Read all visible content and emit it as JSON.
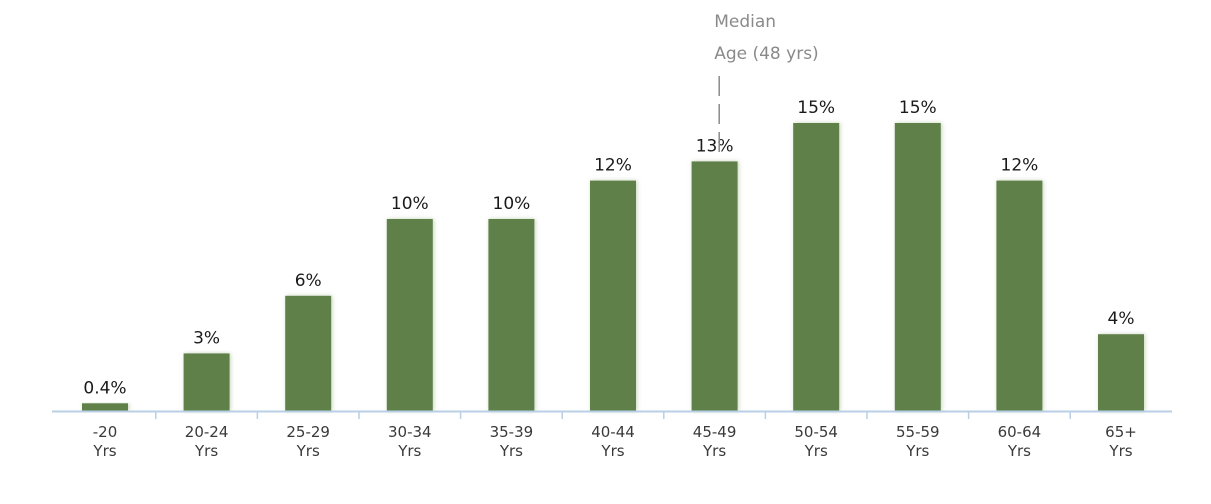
{
  "chart_data": {
    "type": "bar",
    "categories": [
      "-20",
      "20-24",
      "25-29",
      "30-34",
      "35-39",
      "40-44",
      "45-49",
      "50-54",
      "55-59",
      "60-64",
      "65+"
    ],
    "category_sublabels": [
      "Yrs",
      "Yrs",
      "Yrs",
      "Yrs",
      "Yrs",
      "Yrs",
      "Yrs",
      "Yrs",
      "Yrs",
      "Yrs",
      "Yrs"
    ],
    "values": [
      0.4,
      3,
      6,
      10,
      10,
      12,
      13,
      15,
      15,
      12,
      4
    ],
    "data_labels": [
      "0.4%",
      "3%",
      "6%",
      "10%",
      "10%",
      "12%",
      "13%",
      "15%",
      "15%",
      "12%",
      "4%"
    ],
    "title": "",
    "xlabel": "",
    "ylabel": "",
    "ylim": [
      0,
      15
    ],
    "grid": false,
    "bar_color": "#5e8148",
    "annotations": [
      {
        "text_line1": "Median",
        "text_line2": "Age (48 yrs)",
        "x_value": 48
      }
    ]
  }
}
